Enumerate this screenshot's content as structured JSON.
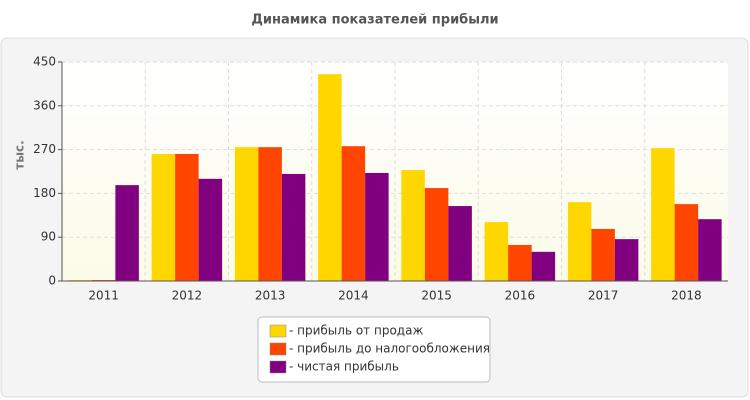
{
  "chart_data": {
    "type": "bar",
    "title": "Динамика показателей прибыли",
    "y_label": "тыс.",
    "categories": [
      "2011",
      "2012",
      "2013",
      "2014",
      "2015",
      "2016",
      "2017",
      "2018"
    ],
    "series": [
      {
        "name": "- прибыль от продаж",
        "color": "#ffd700",
        "values": [
          2,
          261,
          275,
          425,
          228,
          121,
          162,
          273
        ]
      },
      {
        "name": "- прибыль до налогообложения",
        "color": "#ff4500",
        "values": [
          2,
          261,
          275,
          277,
          191,
          74,
          107,
          158
        ]
      },
      {
        "name": "- чистая прибыль",
        "color": "#800080",
        "values": [
          197,
          210,
          220,
          222,
          154,
          60,
          86,
          127
        ]
      }
    ],
    "ylim": [
      0,
      450
    ],
    "yticks": [
      0,
      90,
      180,
      270,
      360,
      450
    ],
    "grid": true,
    "legend": "bottom"
  }
}
